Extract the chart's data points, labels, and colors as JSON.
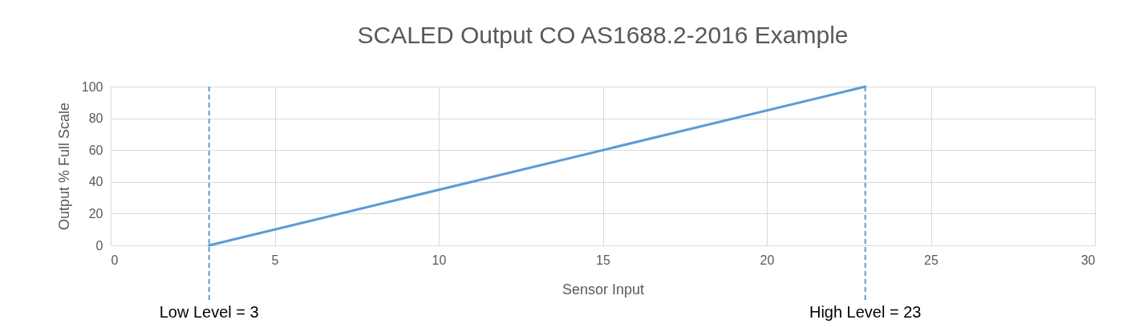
{
  "chart_data": {
    "type": "line",
    "title": "SCALED Output CO AS1688.2-2016 Example",
    "xlabel": "Sensor Input",
    "ylabel": "Output % Full Scale",
    "x": [
      3,
      23
    ],
    "series": [
      {
        "color": "#5b9bd5",
        "values": [
          0,
          100
        ]
      }
    ],
    "xlim": [
      0,
      30
    ],
    "xticks": [
      0,
      5,
      10,
      15,
      20,
      25,
      30
    ],
    "ylim": [
      0,
      100
    ],
    "yticks": [
      0,
      20,
      40,
      60,
      80,
      100
    ],
    "grid": true,
    "marker": "none",
    "line_style": "solid",
    "ref_lines": [
      {
        "axis": "x",
        "value": 3,
        "label": "Low Level = 3",
        "color": "#5b9bd5",
        "line_style": "dashed"
      },
      {
        "axis": "x",
        "value": 23,
        "label": "High Level = 23",
        "color": "#5b9bd5",
        "line_style": "dashed"
      }
    ]
  }
}
